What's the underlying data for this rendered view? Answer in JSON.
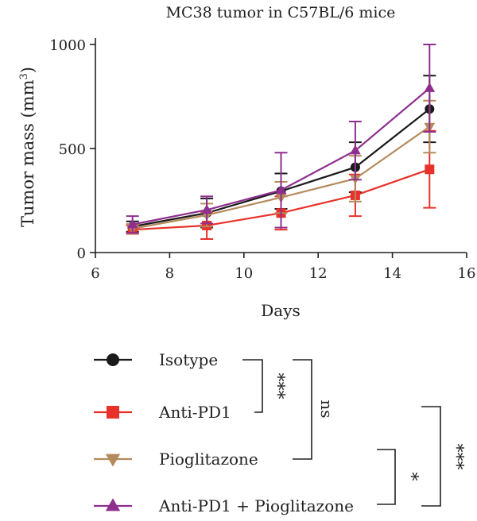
{
  "chart_data": {
    "type": "line",
    "title": "MC38 tumor in C57BL/6 mice",
    "xlabel": "Days",
    "ylabel_main": "Tumor mass (mm",
    "ylabel_sup": "3",
    "ylabel_close": ")",
    "xlim": [
      6,
      16
    ],
    "ylim": [
      0,
      1000
    ],
    "xticks": [
      6,
      8,
      10,
      12,
      14,
      16
    ],
    "yticks": [
      0,
      500,
      1000
    ],
    "x": [
      7,
      9,
      11,
      13,
      15
    ],
    "grid": false,
    "legend_position": "below",
    "series": [
      {
        "name": "Isotype",
        "color": "#1a1a1a",
        "marker": "circle",
        "values": [
          125,
          190,
          295,
          410,
          690
        ],
        "errors": [
          25,
          70,
          85,
          120,
          160
        ]
      },
      {
        "name": "Anti-PD1",
        "color": "#e8312a",
        "marker": "square",
        "values": [
          110,
          130,
          190,
          275,
          400
        ],
        "errors": [
          20,
          65,
          80,
          100,
          185
        ]
      },
      {
        "name": "Pioglitazone",
        "color": "#b58a5c",
        "marker": "triangle-down",
        "values": [
          115,
          180,
          265,
          355,
          605
        ],
        "errors": [
          22,
          55,
          75,
          110,
          125
        ]
      },
      {
        "name": "Anti-PD1 + Pioglitazone",
        "color": "#8e2f8e",
        "marker": "triangle-up",
        "values": [
          135,
          205,
          300,
          490,
          790
        ],
        "errors": [
          40,
          65,
          180,
          140,
          210
        ]
      }
    ],
    "significance": [
      {
        "label": "***",
        "between": [
          "Isotype",
          "Anti-PD1"
        ]
      },
      {
        "label": "ns",
        "between": [
          "Isotype",
          "Pioglitazone"
        ]
      },
      {
        "label": "*",
        "between": [
          "Pioglitazone",
          "Anti-PD1 + Pioglitazone"
        ]
      },
      {
        "label": "***",
        "between": [
          "Anti-PD1",
          "Anti-PD1 + Pioglitazone"
        ]
      }
    ]
  }
}
